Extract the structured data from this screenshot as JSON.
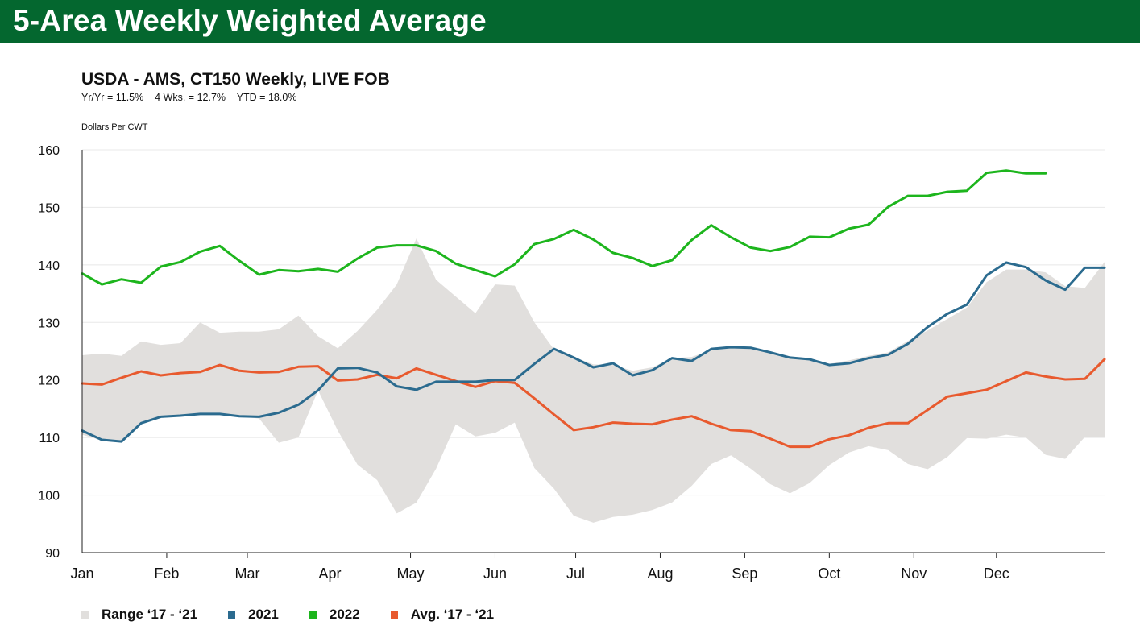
{
  "header": {
    "title": "5-Area Weekly Weighted Average"
  },
  "chart_data": {
    "type": "line",
    "title": "USDA - AMS, CT150 Weekly, LIVE FOB",
    "stats": {
      "yr_yr": "Yr/Yr = 11.5%",
      "four_wks": "4 Wks. = 12.7%",
      "ytd": "YTD = 18.0%"
    },
    "ylabel": "Dollars Per CWT",
    "xlabel": "",
    "ylim": [
      90,
      160
    ],
    "yticks": [
      90,
      100,
      110,
      120,
      130,
      140,
      150,
      160
    ],
    "x_unit": "week of year",
    "xlim": [
      1,
      53
    ],
    "months": [
      "Jan",
      "Feb",
      "Mar",
      "Apr",
      "May",
      "Jun",
      "Jul",
      "Aug",
      "Sep",
      "Oct",
      "Nov",
      "Dec"
    ],
    "month_tick_weeks": [
      1,
      5.3,
      9.4,
      13.6,
      17.7,
      22,
      26.1,
      30.4,
      34.7,
      39,
      43.3,
      47.5
    ],
    "grid": "horizontal",
    "legend_position": "bottom",
    "series": [
      {
        "name": "Range ‘17 - ‘21",
        "type": "area",
        "color": "#e1dfdd",
        "weeks": [
          1,
          2,
          3,
          4,
          5,
          6,
          7,
          8,
          9,
          10,
          11,
          12,
          13,
          14,
          15,
          16,
          17,
          18,
          19,
          20,
          21,
          22,
          23,
          24,
          25,
          26,
          27,
          28,
          29,
          30,
          31,
          32,
          33,
          34,
          35,
          36,
          37,
          38,
          39,
          40,
          41,
          42,
          43,
          44,
          45,
          46,
          47,
          48,
          49,
          50,
          51,
          52,
          53
        ],
        "upper": [
          124.3,
          124.6,
          124.2,
          126.7,
          126.1,
          126.4,
          130.0,
          128.2,
          128.4,
          128.4,
          128.8,
          131.2,
          127.6,
          125.5,
          128.5,
          132.2,
          136.6,
          144.6,
          137.4,
          134.5,
          131.6,
          136.6,
          136.4,
          130.0,
          125.3,
          124.0,
          122.7,
          122.6,
          121.6,
          122.2,
          123.8,
          124.0,
          125.2,
          125.5,
          125.4,
          125.0,
          124.0,
          123.4,
          122.8,
          123.4,
          124.2,
          124.8,
          126.8,
          128.6,
          130.6,
          132.6,
          137.0,
          139.2,
          139.2,
          138.7,
          136.3,
          136.0,
          140.5
        ],
        "lower": [
          110.5,
          109.5,
          109.3,
          112.5,
          113.7,
          113.7,
          114.0,
          114.0,
          113.7,
          113.3,
          109.1,
          110.0,
          118.2,
          111.2,
          105.3,
          102.6,
          96.8,
          98.7,
          104.6,
          112.3,
          110.2,
          110.8,
          112.6,
          104.7,
          101.1,
          96.4,
          95.2,
          96.2,
          96.6,
          97.4,
          98.7,
          101.6,
          105.4,
          106.9,
          104.6,
          101.9,
          100.3,
          102.1,
          105.2,
          107.4,
          108.5,
          107.8,
          105.4,
          104.5,
          106.6,
          109.9,
          109.8,
          110.5,
          110.0,
          107.0,
          106.3,
          110.1,
          110.1
        ]
      },
      {
        "name": "2021",
        "color": "#2b6b8f",
        "weeks": [
          1,
          2,
          3,
          4,
          5,
          6,
          7,
          8,
          9,
          10,
          11,
          12,
          13,
          14,
          15,
          16,
          17,
          18,
          19,
          20,
          21,
          22,
          23,
          24,
          25,
          26,
          27,
          28,
          29,
          30,
          31,
          32,
          33,
          34,
          35,
          36,
          37,
          38,
          39,
          40,
          41,
          42,
          43,
          44,
          45,
          46,
          47,
          48,
          49,
          50,
          51,
          52,
          53
        ],
        "values": [
          111.2,
          109.6,
          109.3,
          112.5,
          113.6,
          113.8,
          114.1,
          114.1,
          113.7,
          113.6,
          114.3,
          115.7,
          118.2,
          122.0,
          122.1,
          121.3,
          118.9,
          118.3,
          119.7,
          119.7,
          119.7,
          120.0,
          120.0,
          122.8,
          125.4,
          123.9,
          122.2,
          122.9,
          120.8,
          121.7,
          123.8,
          123.3,
          125.4,
          125.7,
          125.6,
          124.8,
          123.9,
          123.6,
          122.6,
          122.9,
          123.8,
          124.4,
          126.3,
          129.2,
          131.5,
          133.1,
          138.2,
          140.4,
          139.6,
          137.3,
          135.7,
          139.5,
          139.5
        ]
      },
      {
        "name": "2022",
        "color": "#1db51d",
        "weeks": [
          1,
          2,
          3,
          4,
          5,
          6,
          7,
          8,
          9,
          10,
          11,
          12,
          13,
          14,
          15,
          16,
          17,
          18,
          19,
          20,
          21,
          22,
          23,
          24,
          25,
          26,
          27,
          28,
          29,
          30,
          31,
          32,
          33,
          34,
          35,
          36,
          37,
          38,
          39,
          40,
          41,
          42,
          43,
          44,
          45,
          46,
          47,
          48,
          49,
          50
        ],
        "values": [
          138.5,
          136.6,
          137.5,
          136.9,
          139.7,
          140.5,
          142.3,
          143.3,
          140.7,
          138.3,
          139.1,
          138.9,
          139.3,
          138.8,
          141.1,
          143.0,
          143.4,
          143.4,
          142.4,
          140.2,
          139.1,
          138.0,
          140.1,
          143.6,
          144.5,
          146.1,
          144.4,
          142.1,
          141.2,
          139.8,
          140.8,
          144.3,
          146.9,
          144.8,
          143.0,
          142.4,
          143.1,
          144.9,
          144.8,
          146.3,
          147.0,
          150.1,
          152.0,
          152.0,
          152.7,
          152.9,
          156.0,
          156.4,
          155.9,
          155.9
        ]
      },
      {
        "name": "Avg. ‘17 - ‘21",
        "color": "#e85a2e",
        "weeks": [
          1,
          2,
          3,
          4,
          5,
          6,
          7,
          8,
          9,
          10,
          11,
          12,
          13,
          14,
          15,
          16,
          17,
          18,
          19,
          20,
          21,
          22,
          23,
          24,
          25,
          26,
          27,
          28,
          29,
          30,
          31,
          32,
          33,
          34,
          35,
          36,
          37,
          38,
          39,
          40,
          41,
          42,
          43,
          44,
          45,
          46,
          47,
          48,
          49,
          50,
          51,
          52,
          53
        ],
        "values": [
          119.4,
          119.2,
          120.4,
          121.5,
          120.8,
          121.2,
          121.4,
          122.6,
          121.6,
          121.3,
          121.4,
          122.3,
          122.4,
          119.9,
          120.1,
          120.9,
          120.3,
          122.0,
          120.9,
          119.8,
          118.8,
          119.8,
          119.5,
          116.8,
          114.0,
          111.3,
          111.8,
          112.6,
          112.4,
          112.3,
          113.1,
          113.7,
          112.4,
          111.3,
          111.1,
          109.8,
          108.4,
          108.4,
          109.7,
          110.4,
          111.7,
          112.5,
          112.5,
          114.8,
          117.1,
          117.7,
          118.3,
          119.8,
          121.3,
          120.6,
          120.1,
          120.2,
          123.6
        ]
      }
    ]
  }
}
